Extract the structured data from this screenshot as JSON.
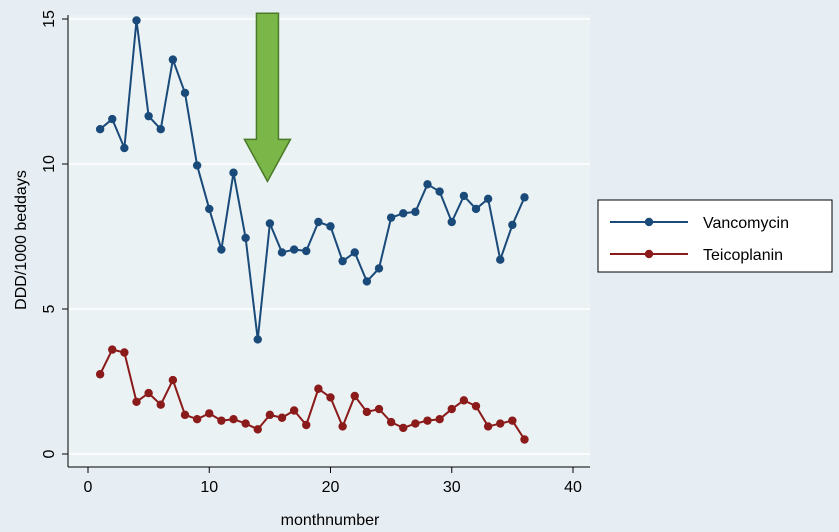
{
  "chart_data": {
    "type": "line",
    "title": "",
    "xlabel": "monthnumber",
    "ylabel": "DDD/1000 beddays",
    "xlim": [
      0,
      40
    ],
    "ylim": [
      0,
      15
    ],
    "x_ticks": [
      0,
      10,
      20,
      30,
      40
    ],
    "x_tick_labels": [
      "0",
      "10",
      "20",
      "30",
      "40"
    ],
    "y_ticks": [
      0,
      5,
      10,
      15
    ],
    "y_tick_labels": [
      "0",
      "5",
      "10",
      "15"
    ],
    "grid": true,
    "legend_position": "right",
    "x": [
      1,
      2,
      3,
      4,
      5,
      6,
      7,
      8,
      9,
      10,
      11,
      12,
      13,
      14,
      15,
      16,
      17,
      18,
      19,
      20,
      21,
      22,
      23,
      24,
      25,
      26,
      27,
      28,
      29,
      30,
      31,
      32,
      33,
      34,
      35,
      36
    ],
    "series": [
      {
        "name": "Vancomycin",
        "color": "#1a4a7a",
        "values": [
          11.2,
          11.55,
          10.55,
          14.95,
          11.65,
          11.2,
          13.6,
          12.45,
          9.95,
          8.45,
          7.05,
          9.7,
          7.45,
          3.95,
          7.95,
          6.95,
          7.05,
          7.0,
          8.0,
          7.85,
          6.65,
          6.95,
          5.95,
          6.4,
          8.15,
          8.3,
          8.35,
          9.3,
          9.05,
          8.0,
          8.9,
          8.45,
          8.8,
          6.7,
          7.9,
          8.85
        ]
      },
      {
        "name": "Teicoplanin",
        "color": "#8b1a1a",
        "values": [
          2.75,
          3.6,
          3.5,
          1.8,
          2.1,
          1.7,
          2.55,
          1.35,
          1.2,
          1.4,
          1.15,
          1.2,
          1.05,
          0.85,
          1.35,
          1.25,
          1.5,
          1.0,
          2.25,
          1.95,
          0.95,
          2.0,
          1.45,
          1.55,
          1.1,
          0.9,
          1.05,
          1.15,
          1.2,
          1.55,
          1.85,
          1.65,
          0.95,
          1.05,
          1.15,
          0.5
        ]
      }
    ],
    "annotation": {
      "type": "arrow",
      "color": "#7ab648",
      "x_data": 14.8,
      "y_top_data": 15.2,
      "y_tip_data": 9.4
    }
  }
}
